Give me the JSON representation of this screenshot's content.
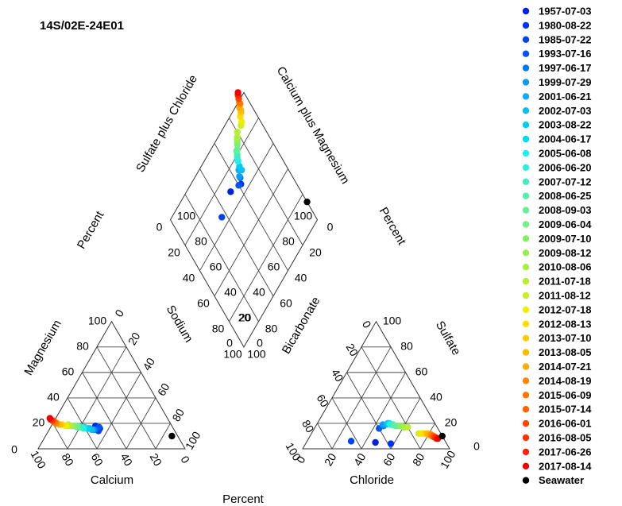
{
  "chart_data": {
    "type": "scatter",
    "subtype": "piper-diagram",
    "title": "14S/02E-24E01",
    "percent_label": "Percent",
    "cation_triangle": {
      "left_axis": "Magnesium",
      "bottom_axis": "Calcium",
      "right_axis": "Sodium",
      "left_ticks": [
        "20",
        "40",
        "60",
        "80",
        "100"
      ],
      "left_zero": "0",
      "bottom_ticks": [
        "100",
        "80",
        "60",
        "40",
        "20",
        "0"
      ],
      "right_ticks": [
        "0",
        "20",
        "40",
        "60",
        "80",
        "100"
      ]
    },
    "anion_triangle": {
      "left_axis": "Bicarbonate",
      "bottom_axis": "Chloride",
      "right_axis": "Sulfate",
      "left_ticks": [
        "100",
        "80",
        "60",
        "40",
        "20",
        "0"
      ],
      "bottom_ticks": [
        "0",
        "20",
        "40",
        "60",
        "80",
        "100"
      ],
      "right_ticks": [
        "100",
        "80",
        "60",
        "40",
        "20"
      ],
      "right_zero": "0"
    },
    "diamond": {
      "upper_left_axis": "Sulfate plus Chloride",
      "upper_right_axis": "Calcium plus Magnesium",
      "upper_left_ticks": [
        "100",
        "80",
        "60",
        "40",
        "20",
        "0"
      ],
      "upper_right_ticks": [
        "100",
        "80",
        "60",
        "40",
        "20",
        "0"
      ],
      "lower_left_ticks": [
        "0",
        "20",
        "40",
        "60",
        "80",
        "100"
      ],
      "lower_right_ticks": [
        "0",
        "20",
        "40",
        "60",
        "80",
        "100"
      ]
    },
    "series": [
      {
        "name": "1957-07-03",
        "color": "#0022dd",
        "ca": 52,
        "mg": 18,
        "cl": 47,
        "so4": 5
      },
      {
        "name": "1980-08-22",
        "color": "#0033ee",
        "ca": 50,
        "mg": 16,
        "cl": 58,
        "so4": 4
      },
      {
        "name": "1985-07-22",
        "color": "#0044ee",
        "ca": 52,
        "mg": 14,
        "cl": 30,
        "so4": 6
      },
      {
        "name": "1993-07-16",
        "color": "#0055f0",
        "ca": 50,
        "mg": 17,
        "cl": 44,
        "so4": 16
      },
      {
        "name": "1997-06-17",
        "color": "#0077f2",
        "ca": 54,
        "mg": 15,
        "cl": 46,
        "so4": 18
      },
      {
        "name": "1999-07-29",
        "color": "#1199f5",
        "ca": 55,
        "mg": 15,
        "cl": 45,
        "so4": 19
      },
      {
        "name": "2001-06-21",
        "color": "#11aaf5",
        "ca": 57,
        "mg": 16,
        "cl": 47,
        "so4": 19
      },
      {
        "name": "2002-07-03",
        "color": "#11bbf0",
        "ca": 56,
        "mg": 15,
        "cl": 48,
        "so4": 20
      },
      {
        "name": "2003-08-22",
        "color": "#00ccf0",
        "ca": 58,
        "mg": 16,
        "cl": 48,
        "so4": 20
      },
      {
        "name": "2004-06-17",
        "color": "#00ddee",
        "ca": 60,
        "mg": 17,
        "cl": 49,
        "so4": 20
      },
      {
        "name": "2005-06-08",
        "color": "#22eeee",
        "ca": 61,
        "mg": 16,
        "cl": 50,
        "so4": 19
      },
      {
        "name": "2006-06-20",
        "color": "#33eedd",
        "ca": 62,
        "mg": 17,
        "cl": 51,
        "so4": 19
      },
      {
        "name": "2007-07-12",
        "color": "#44eebb",
        "ca": 63,
        "mg": 17,
        "cl": 52,
        "so4": 19
      },
      {
        "name": "2008-06-25",
        "color": "#55eeaa",
        "ca": 64,
        "mg": 18,
        "cl": 54,
        "so4": 18
      },
      {
        "name": "2008-09-03",
        "color": "#66ee99",
        "ca": 65,
        "mg": 17,
        "cl": 55,
        "so4": 18
      },
      {
        "name": "2009-06-04",
        "color": "#77ee88",
        "ca": 66,
        "mg": 18,
        "cl": 57,
        "so4": 18
      },
      {
        "name": "2009-07-10",
        "color": "#88ee66",
        "ca": 67,
        "mg": 18,
        "cl": 58,
        "so4": 18
      },
      {
        "name": "2009-08-12",
        "color": "#99ee55",
        "ca": 68,
        "mg": 18,
        "cl": 60,
        "so4": 17
      },
      {
        "name": "2010-08-06",
        "color": "#aaee44",
        "ca": 69,
        "mg": 18,
        "cl": 61,
        "so4": 17
      },
      {
        "name": "2011-07-18",
        "color": "#bbee33",
        "ca": 70,
        "mg": 19,
        "cl": 63,
        "so4": 17
      },
      {
        "name": "2011-08-12",
        "color": "#ccee22",
        "ca": 71,
        "mg": 18,
        "cl": 73,
        "so4": 12
      },
      {
        "name": "2012-07-18",
        "color": "#eeee00",
        "ca": 72,
        "mg": 18,
        "cl": 75,
        "so4": 12
      },
      {
        "name": "2012-08-13",
        "color": "#ffdd00",
        "ca": 74,
        "mg": 19,
        "cl": 76,
        "so4": 12
      },
      {
        "name": "2013-07-10",
        "color": "#ffcc00",
        "ca": 75,
        "mg": 19,
        "cl": 78,
        "so4": 12
      },
      {
        "name": "2013-08-05",
        "color": "#ffbb00",
        "ca": 76,
        "mg": 19,
        "cl": 79,
        "so4": 12
      },
      {
        "name": "2014-07-21",
        "color": "#ffaa00",
        "ca": 77,
        "mg": 20,
        "cl": 80,
        "so4": 11
      },
      {
        "name": "2014-08-19",
        "color": "#ff8800",
        "ca": 78,
        "mg": 20,
        "cl": 82,
        "so4": 11
      },
      {
        "name": "2015-06-09",
        "color": "#ff7700",
        "ca": 78,
        "mg": 21,
        "cl": 83,
        "so4": 10
      },
      {
        "name": "2015-07-14",
        "color": "#ff6600",
        "ca": 79,
        "mg": 22,
        "cl": 84,
        "so4": 10
      },
      {
        "name": "2016-06-01",
        "color": "#ff4400",
        "ca": 79,
        "mg": 22,
        "cl": 85,
        "so4": 9
      },
      {
        "name": "2016-08-05",
        "color": "#ff3300",
        "ca": 80,
        "mg": 23,
        "cl": 86,
        "so4": 9
      },
      {
        "name": "2017-06-26",
        "color": "#ff2200",
        "ca": 80,
        "mg": 23,
        "cl": 87,
        "so4": 8
      },
      {
        "name": "2017-08-14",
        "color": "#ee0000",
        "ca": 80,
        "mg": 24,
        "cl": 88,
        "so4": 8
      },
      {
        "name": "Seawater",
        "color": "#000000",
        "ca": 4,
        "mg": 10,
        "cl": 90,
        "so4": 10
      }
    ]
  }
}
